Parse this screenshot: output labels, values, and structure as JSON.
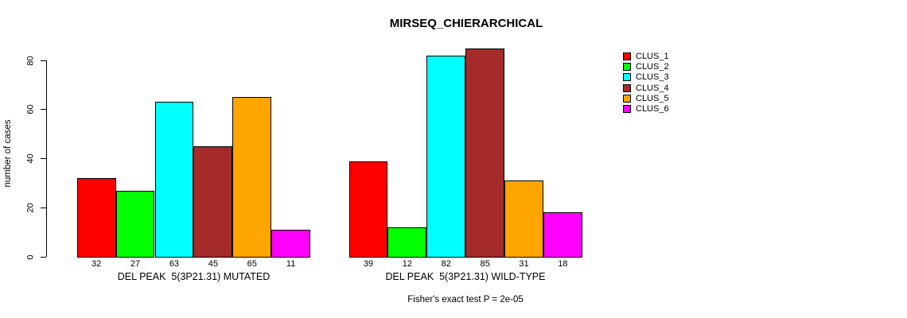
{
  "title": "MIRSEQ_CHIERARCHICAL",
  "footnote": "Fisher's exact test P = 2e-05",
  "chart_data": {
    "type": "bar",
    "title": "MIRSEQ_CHIERARCHICAL",
    "ylabel": "number of cases",
    "xlabel": "",
    "ylim": [
      0,
      80
    ],
    "yticks": [
      0,
      20,
      40,
      60,
      80
    ],
    "grid": false,
    "legend_position": "right",
    "background_color": "#ffffff",
    "bar_border_color": "#000000",
    "clusters": [
      {
        "label": "CLUS_1",
        "color": "#FF0000"
      },
      {
        "label": "CLUS_2",
        "color": "#00FF00"
      },
      {
        "label": "CLUS_3",
        "color": "#00FFFF"
      },
      {
        "label": "CLUS_4",
        "color": "#A52A2A"
      },
      {
        "label": "CLUS_5",
        "color": "#FFA500"
      },
      {
        "label": "CLUS_6",
        "color": "#FF00FF"
      }
    ],
    "groups": [
      {
        "label": "DEL PEAK  5(3P21.31) MUTATED",
        "values": [
          32,
          27,
          63,
          45,
          65,
          11
        ]
      },
      {
        "label": "DEL PEAK  5(3P21.31) WILD-TYPE",
        "values": [
          39,
          12,
          82,
          85,
          31,
          18
        ]
      }
    ],
    "footnote": "Fisher's exact test P = 2e-05"
  }
}
